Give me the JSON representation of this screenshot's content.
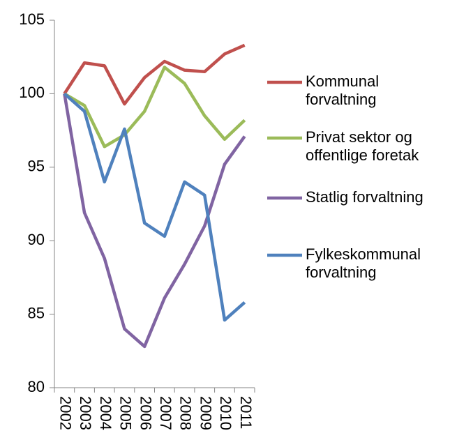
{
  "chart_data": {
    "type": "line",
    "categories": [
      "2002",
      "2003",
      "2004",
      "2005",
      "2006",
      "2007",
      "2008",
      "2009",
      "2010",
      "2011"
    ],
    "series": [
      {
        "name": "Kommunal forvaltning",
        "color": "#c0504d",
        "values": [
          100,
          102.1,
          101.9,
          99.3,
          101.1,
          102.2,
          101.6,
          101.5,
          102.7,
          103.3
        ]
      },
      {
        "name": "Privat sektor og offentlige foretak",
        "color": "#9bbb59",
        "values": [
          100,
          99.2,
          96.4,
          97.2,
          98.8,
          101.8,
          100.7,
          98.5,
          96.9,
          98.2
        ]
      },
      {
        "name": "Statlig forvaltning",
        "color": "#8064a2",
        "values": [
          100,
          91.9,
          88.8,
          84.0,
          82.8,
          86.1,
          88.4,
          91.0,
          95.2,
          97.1
        ]
      },
      {
        "name": "Fylkeskommunal forvaltning",
        "color": "#4f81bd",
        "values": [
          100,
          98.8,
          94.0,
          97.6,
          91.2,
          90.3,
          94.0,
          93.1,
          84.6,
          85.8
        ]
      }
    ],
    "ylim": [
      80,
      105
    ],
    "yticks": [
      80,
      85,
      90,
      95,
      100,
      105
    ],
    "legend": "right"
  }
}
